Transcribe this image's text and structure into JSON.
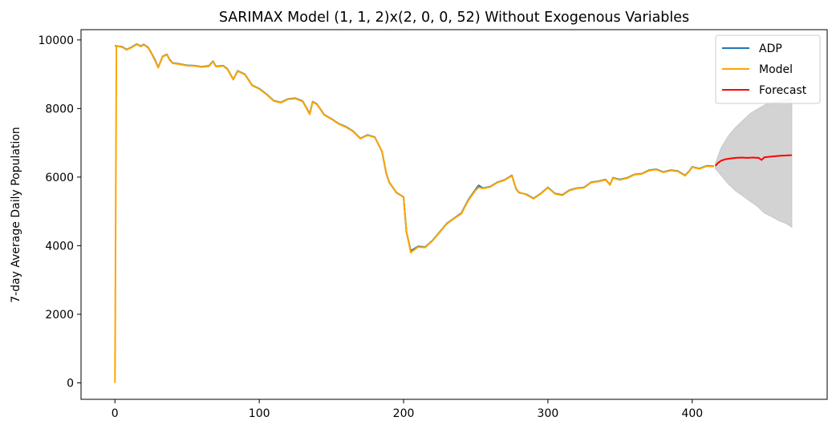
{
  "chart_data": {
    "type": "line",
    "title": "SARIMAX Model (1, 1, 2)x(2, 0, 0, 52) Without Exogenous Variables",
    "xlabel": "",
    "ylabel": "7-day Average Daily Population",
    "xlim": [
      -23.5,
      493.5
    ],
    "ylim": [
      -480,
      10300
    ],
    "xticks": [
      0,
      100,
      200,
      300,
      400
    ],
    "yticks": [
      0,
      2000,
      4000,
      6000,
      8000,
      10000
    ],
    "grid": false,
    "legend_position": "top-right",
    "series": [
      {
        "name": "ADP",
        "color": "#1f77b4",
        "points": [
          [
            0,
            9830
          ],
          [
            5,
            9800
          ],
          [
            8,
            9720
          ],
          [
            12,
            9800
          ],
          [
            15,
            9880
          ],
          [
            18,
            9820
          ],
          [
            20,
            9870
          ],
          [
            23,
            9780
          ],
          [
            25,
            9640
          ],
          [
            28,
            9400
          ],
          [
            30,
            9200
          ],
          [
            33,
            9520
          ],
          [
            36,
            9580
          ],
          [
            38,
            9420
          ],
          [
            40,
            9330
          ],
          [
            45,
            9300
          ],
          [
            50,
            9260
          ],
          [
            55,
            9250
          ],
          [
            60,
            9220
          ],
          [
            65,
            9240
          ],
          [
            68,
            9380
          ],
          [
            70,
            9230
          ],
          [
            75,
            9250
          ],
          [
            78,
            9150
          ],
          [
            82,
            8850
          ],
          [
            85,
            9100
          ],
          [
            90,
            9000
          ],
          [
            95,
            8680
          ],
          [
            100,
            8580
          ],
          [
            105,
            8420
          ],
          [
            110,
            8230
          ],
          [
            115,
            8180
          ],
          [
            120,
            8280
          ],
          [
            125,
            8300
          ],
          [
            130,
            8220
          ],
          [
            135,
            7850
          ],
          [
            137,
            8200
          ],
          [
            140,
            8130
          ],
          [
            145,
            7820
          ],
          [
            150,
            7700
          ],
          [
            155,
            7560
          ],
          [
            160,
            7470
          ],
          [
            165,
            7340
          ],
          [
            170,
            7130
          ],
          [
            175,
            7230
          ],
          [
            180,
            7170
          ],
          [
            185,
            6750
          ],
          [
            188,
            6100
          ],
          [
            190,
            5850
          ],
          [
            195,
            5550
          ],
          [
            200,
            5420
          ],
          [
            202,
            4400
          ],
          [
            205,
            3850
          ],
          [
            210,
            3980
          ],
          [
            215,
            3960
          ],
          [
            220,
            4150
          ],
          [
            225,
            4400
          ],
          [
            230,
            4650
          ],
          [
            235,
            4800
          ],
          [
            240,
            4950
          ],
          [
            245,
            5350
          ],
          [
            250,
            5650
          ],
          [
            252,
            5760
          ],
          [
            255,
            5680
          ],
          [
            260,
            5720
          ],
          [
            265,
            5850
          ],
          [
            270,
            5920
          ],
          [
            275,
            6050
          ],
          [
            278,
            5650
          ],
          [
            280,
            5550
          ],
          [
            285,
            5500
          ],
          [
            290,
            5380
          ],
          [
            295,
            5520
          ],
          [
            300,
            5700
          ],
          [
            305,
            5520
          ],
          [
            310,
            5480
          ],
          [
            315,
            5620
          ],
          [
            320,
            5680
          ],
          [
            325,
            5700
          ],
          [
            330,
            5850
          ],
          [
            335,
            5880
          ],
          [
            340,
            5930
          ],
          [
            343,
            5780
          ],
          [
            345,
            5980
          ],
          [
            350,
            5930
          ],
          [
            355,
            5980
          ],
          [
            360,
            6080
          ],
          [
            365,
            6100
          ],
          [
            370,
            6200
          ],
          [
            375,
            6230
          ],
          [
            380,
            6150
          ],
          [
            385,
            6200
          ],
          [
            390,
            6180
          ],
          [
            395,
            6050
          ],
          [
            398,
            6180
          ],
          [
            400,
            6300
          ],
          [
            405,
            6250
          ],
          [
            410,
            6330
          ],
          [
            415,
            6320
          ]
        ]
      },
      {
        "name": "Model",
        "color": "#ffa500",
        "points": [
          [
            0,
            0
          ],
          [
            1,
            9820
          ],
          [
            5,
            9790
          ],
          [
            8,
            9710
          ],
          [
            12,
            9790
          ],
          [
            15,
            9870
          ],
          [
            18,
            9810
          ],
          [
            20,
            9860
          ],
          [
            23,
            9770
          ],
          [
            25,
            9630
          ],
          [
            28,
            9380
          ],
          [
            30,
            9190
          ],
          [
            33,
            9510
          ],
          [
            36,
            9570
          ],
          [
            38,
            9410
          ],
          [
            40,
            9320
          ],
          [
            45,
            9290
          ],
          [
            50,
            9250
          ],
          [
            55,
            9240
          ],
          [
            60,
            9210
          ],
          [
            65,
            9230
          ],
          [
            68,
            9370
          ],
          [
            70,
            9220
          ],
          [
            75,
            9240
          ],
          [
            78,
            9140
          ],
          [
            82,
            8840
          ],
          [
            85,
            9090
          ],
          [
            90,
            8990
          ],
          [
            95,
            8670
          ],
          [
            100,
            8570
          ],
          [
            105,
            8410
          ],
          [
            110,
            8220
          ],
          [
            115,
            8170
          ],
          [
            120,
            8270
          ],
          [
            125,
            8290
          ],
          [
            130,
            8210
          ],
          [
            135,
            7830
          ],
          [
            137,
            8190
          ],
          [
            140,
            8120
          ],
          [
            145,
            7810
          ],
          [
            150,
            7690
          ],
          [
            155,
            7550
          ],
          [
            160,
            7460
          ],
          [
            165,
            7330
          ],
          [
            170,
            7120
          ],
          [
            175,
            7220
          ],
          [
            180,
            7160
          ],
          [
            185,
            6760
          ],
          [
            188,
            6120
          ],
          [
            190,
            5860
          ],
          [
            195,
            5560
          ],
          [
            200,
            5410
          ],
          [
            202,
            4420
          ],
          [
            205,
            3800
          ],
          [
            210,
            3960
          ],
          [
            215,
            3950
          ],
          [
            220,
            4140
          ],
          [
            225,
            4390
          ],
          [
            230,
            4640
          ],
          [
            235,
            4790
          ],
          [
            240,
            4930
          ],
          [
            245,
            5330
          ],
          [
            250,
            5620
          ],
          [
            252,
            5700
          ],
          [
            255,
            5670
          ],
          [
            260,
            5710
          ],
          [
            265,
            5840
          ],
          [
            270,
            5910
          ],
          [
            275,
            6040
          ],
          [
            278,
            5660
          ],
          [
            280,
            5560
          ],
          [
            285,
            5490
          ],
          [
            290,
            5370
          ],
          [
            295,
            5510
          ],
          [
            300,
            5690
          ],
          [
            305,
            5510
          ],
          [
            310,
            5470
          ],
          [
            315,
            5610
          ],
          [
            320,
            5670
          ],
          [
            325,
            5690
          ],
          [
            330,
            5840
          ],
          [
            335,
            5870
          ],
          [
            340,
            5920
          ],
          [
            343,
            5770
          ],
          [
            345,
            5970
          ],
          [
            350,
            5920
          ],
          [
            355,
            5970
          ],
          [
            360,
            6070
          ],
          [
            365,
            6090
          ],
          [
            370,
            6190
          ],
          [
            375,
            6220
          ],
          [
            380,
            6140
          ],
          [
            385,
            6190
          ],
          [
            390,
            6170
          ],
          [
            395,
            6040
          ],
          [
            398,
            6170
          ],
          [
            400,
            6290
          ],
          [
            405,
            6240
          ],
          [
            410,
            6320
          ],
          [
            415,
            6310
          ]
        ]
      },
      {
        "name": "Forecast",
        "color": "#ff0000",
        "points": [
          [
            416,
            6330
          ],
          [
            418,
            6420
          ],
          [
            420,
            6480
          ],
          [
            423,
            6520
          ],
          [
            426,
            6540
          ],
          [
            430,
            6560
          ],
          [
            434,
            6570
          ],
          [
            438,
            6560
          ],
          [
            442,
            6570
          ],
          [
            446,
            6560
          ],
          [
            448,
            6500
          ],
          [
            450,
            6580
          ],
          [
            455,
            6600
          ],
          [
            460,
            6620
          ],
          [
            465,
            6630
          ],
          [
            469,
            6640
          ]
        ]
      }
    ],
    "confidence_interval": {
      "color": "#d3d3d3",
      "x": [
        416,
        420,
        425,
        430,
        435,
        440,
        445,
        450,
        455,
        460,
        465,
        469
      ],
      "upper": [
        6400,
        6850,
        7200,
        7450,
        7650,
        7850,
        7980,
        8100,
        8180,
        8200,
        8250,
        8300
      ],
      "lower": [
        6250,
        6050,
        5800,
        5600,
        5450,
        5300,
        5150,
        4950,
        4850,
        4730,
        4650,
        4540
      ]
    }
  }
}
